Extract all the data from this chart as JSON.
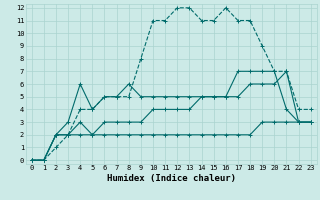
{
  "xlabel": "Humidex (Indice chaleur)",
  "bg_color": "#cceae7",
  "grid_color": "#aad4d0",
  "line_color": "#006b6b",
  "xlim": [
    -0.5,
    23.5
  ],
  "ylim": [
    -0.3,
    12.3
  ],
  "xticks": [
    0,
    1,
    2,
    3,
    4,
    5,
    6,
    7,
    8,
    9,
    10,
    11,
    12,
    13,
    14,
    15,
    16,
    17,
    18,
    19,
    20,
    21,
    22,
    23
  ],
  "yticks": [
    0,
    1,
    2,
    3,
    4,
    5,
    6,
    7,
    8,
    9,
    10,
    11,
    12
  ],
  "line1_x": [
    0,
    1,
    2,
    3,
    4,
    5,
    6,
    7,
    8,
    9,
    10,
    11,
    12,
    13,
    14,
    15,
    16,
    17,
    18,
    19,
    20,
    21,
    22,
    23
  ],
  "line1_y": [
    0,
    0,
    1,
    2,
    4,
    4,
    5,
    5,
    5,
    8,
    11,
    11,
    12,
    12,
    11,
    11,
    12,
    11,
    11,
    9,
    7,
    7,
    4,
    4
  ],
  "line2_x": [
    0,
    1,
    2,
    3,
    4,
    5,
    6,
    7,
    8,
    9,
    10,
    11,
    12,
    13,
    14,
    15,
    16,
    17,
    18,
    19,
    20,
    21,
    22,
    23
  ],
  "line2_y": [
    0,
    0,
    2,
    3,
    6,
    4,
    5,
    5,
    6,
    5,
    5,
    5,
    5,
    5,
    5,
    5,
    5,
    7,
    7,
    7,
    7,
    4,
    3,
    3
  ],
  "line3_x": [
    0,
    1,
    2,
    3,
    4,
    5,
    6,
    7,
    8,
    9,
    10,
    11,
    12,
    13,
    14,
    15,
    16,
    17,
    18,
    19,
    20,
    21,
    22,
    23
  ],
  "line3_y": [
    0,
    0,
    2,
    2,
    3,
    2,
    3,
    3,
    3,
    3,
    4,
    4,
    4,
    4,
    5,
    5,
    5,
    5,
    6,
    6,
    6,
    7,
    3,
    3
  ],
  "line4_x": [
    0,
    1,
    2,
    3,
    4,
    5,
    6,
    7,
    8,
    9,
    10,
    11,
    12,
    13,
    14,
    15,
    16,
    17,
    18,
    19,
    20,
    21,
    22,
    23
  ],
  "line4_y": [
    0,
    0,
    2,
    2,
    2,
    2,
    2,
    2,
    2,
    2,
    2,
    2,
    2,
    2,
    2,
    2,
    2,
    2,
    2,
    3,
    3,
    3,
    3,
    3
  ],
  "tick_fontsize": 5,
  "xlabel_fontsize": 6.5,
  "marker_size": 2.5,
  "linewidth": 0.8
}
